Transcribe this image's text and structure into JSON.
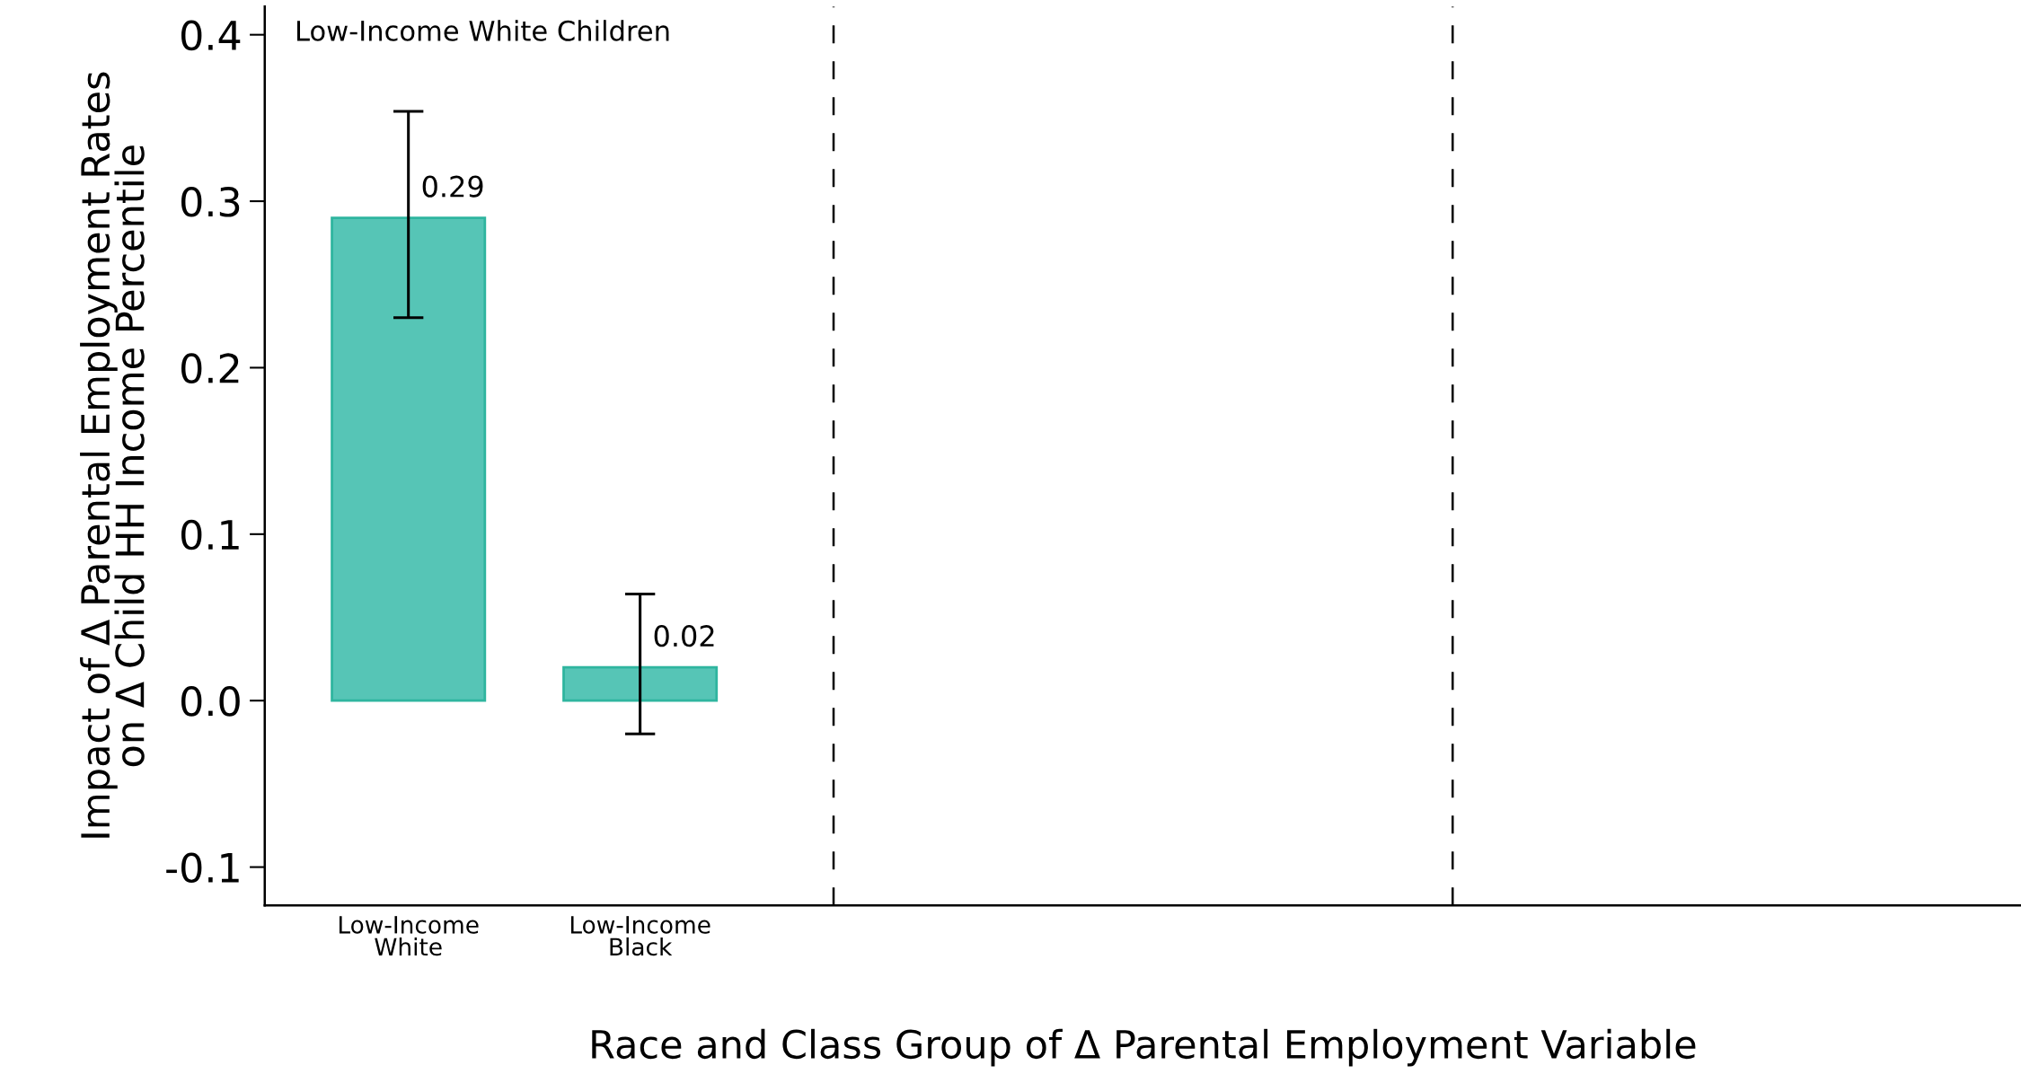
{
  "chart_data": {
    "type": "bar",
    "xlabel": "Race and Class Group of Δ Parental Employment Variable",
    "ylabel": "Impact of Δ Parental Employment Rates\non Δ Child HH Income Percentile",
    "annotations": [
      "Low-Income White Children"
    ],
    "categories": [
      "Low-Income\nWhite",
      "Low-Income\nBlack",
      null,
      null,
      null,
      null,
      null
    ],
    "values": [
      0.29,
      0.02,
      null,
      null,
      null,
      null,
      null
    ],
    "color": "#56c5b6",
    "data_labels": true,
    "errors": [
      [
        0.23,
        0.354
      ],
      [
        -0.02,
        0.064
      ],
      null,
      null,
      null,
      null,
      null
    ],
    "ylim": [
      -0.123,
      0.417
    ],
    "yticks": [
      {
        "value": -0.1,
        "label": "-0.1"
      },
      {
        "value": 0,
        "label": "0.0"
      },
      {
        "value": 0.1,
        "label": "0.1"
      },
      {
        "value": 0.2,
        "label": "0.2"
      },
      {
        "value": 0.3,
        "label": "0.3"
      },
      {
        "value": 0.4,
        "label": "0.4"
      }
    ],
    "grid": false,
    "legend": false
  }
}
